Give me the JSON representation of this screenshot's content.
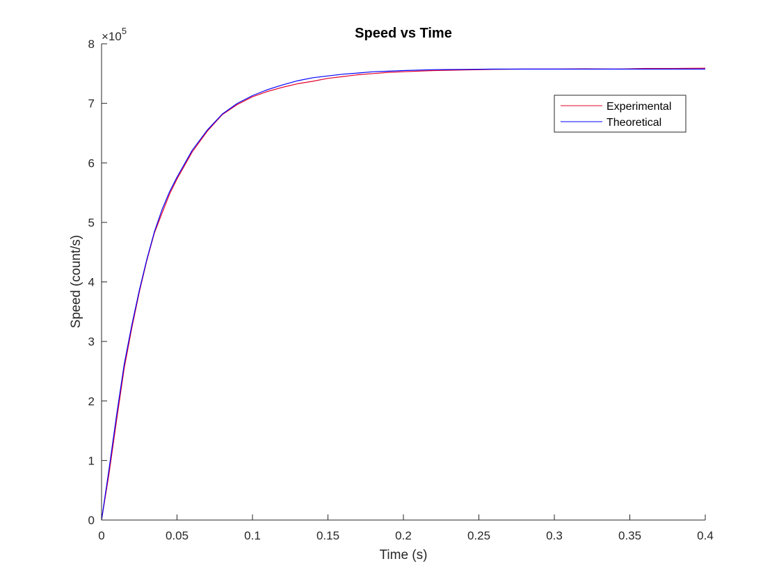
{
  "chart_data": {
    "type": "line",
    "title": "Speed vs Time",
    "xlabel": "Time (s)",
    "ylabel": "Speed (count/s)",
    "xlim": [
      0,
      0.4
    ],
    "ylim": [
      0,
      800000
    ],
    "y_exponent_label": {
      "base": "×10",
      "exponent": "5"
    },
    "x_ticks": [
      0,
      0.05,
      0.1,
      0.15,
      0.2,
      0.25,
      0.3,
      0.35,
      0.4
    ],
    "x_tick_labels": [
      "0",
      "0.05",
      "0.1",
      "0.15",
      "0.2",
      "0.25",
      "0.3",
      "0.35",
      "0.4"
    ],
    "y_ticks": [
      0,
      100000,
      200000,
      300000,
      400000,
      500000,
      600000,
      700000,
      800000
    ],
    "y_tick_labels": [
      "0",
      "1",
      "2",
      "3",
      "4",
      "5",
      "6",
      "7",
      "8"
    ],
    "grid": false,
    "legend": "top-right",
    "series": [
      {
        "name": "Experimental",
        "color": "#e4002b",
        "x": [
          0,
          0.005,
          0.01,
          0.015,
          0.02,
          0.025,
          0.03,
          0.035,
          0.04,
          0.045,
          0.05,
          0.06,
          0.07,
          0.08,
          0.09,
          0.1,
          0.11,
          0.12,
          0.13,
          0.14,
          0.15,
          0.16,
          0.17,
          0.18,
          0.19,
          0.2,
          0.22,
          0.24,
          0.26,
          0.28,
          0.3,
          0.32,
          0.34,
          0.36,
          0.38,
          0.4
        ],
        "values": [
          0,
          78000,
          168000,
          255000,
          322000,
          383000,
          436000,
          482000,
          515000,
          547000,
          573000,
          618000,
          653000,
          681000,
          698000,
          711000,
          720000,
          727000,
          733000,
          737000,
          742000,
          745000,
          748000,
          750000,
          752000,
          753000,
          755000,
          756000,
          757000,
          757500,
          757500,
          758000,
          757500,
          758500,
          758500,
          759000
        ]
      },
      {
        "name": "Theoretical",
        "color": "#0000ff",
        "x": [
          0,
          0.005,
          0.01,
          0.015,
          0.02,
          0.025,
          0.03,
          0.035,
          0.04,
          0.045,
          0.05,
          0.06,
          0.07,
          0.08,
          0.09,
          0.1,
          0.11,
          0.12,
          0.13,
          0.14,
          0.15,
          0.16,
          0.17,
          0.18,
          0.19,
          0.2,
          0.22,
          0.24,
          0.26,
          0.28,
          0.3,
          0.32,
          0.34,
          0.36,
          0.38,
          0.4
        ],
        "values": [
          0,
          86000,
          177000,
          262000,
          327000,
          386000,
          438000,
          484000,
          521000,
          551000,
          576000,
          621000,
          655000,
          682000,
          700000,
          713000,
          723000,
          731000,
          738000,
          743000,
          746000,
          749000,
          751000,
          753000,
          754000,
          755000,
          756500,
          757000,
          757500,
          757500,
          757500,
          757500,
          757500,
          757500,
          757500,
          757500
        ]
      }
    ]
  }
}
